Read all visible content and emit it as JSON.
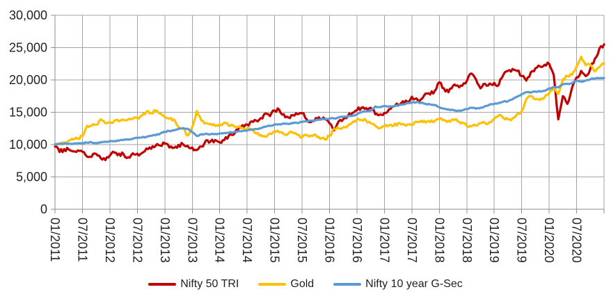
{
  "chart_data": {
    "type": "line",
    "title": "",
    "xlabel": "",
    "ylabel": "",
    "ylim": [
      0,
      30000
    ],
    "grid": true,
    "legend_position": "bottom",
    "grid_color": "#a3a3a3",
    "axis_color": "#8c8c8c",
    "text_color": "#1f1f1f",
    "y_tick_values": [
      0,
      5000,
      10000,
      15000,
      20000,
      25000,
      30000
    ],
    "y_tick_labels": [
      "0",
      "5,000",
      "10,000",
      "15,000",
      "20,000",
      "25,000",
      "30,000"
    ],
    "x_tick_labels": [
      "01/2011",
      "07/2011",
      "01/2012",
      "07/2012",
      "01/2013",
      "07/2013",
      "01/2014",
      "07/2014",
      "01/2015",
      "07/2015",
      "01/2016",
      "07/2016",
      "01/2017",
      "07/2017",
      "01/2018",
      "07/2018",
      "01/2019",
      "07/2019",
      "01/2020",
      "07/2020"
    ],
    "x_start": "01/2011",
    "x_end": "01/2021",
    "x_interval": "monthly",
    "series": [
      {
        "name": "Nifty 50 TRI",
        "color": "#C00000",
        "values": [
          9700,
          8850,
          9300,
          9250,
          8950,
          9100,
          8900,
          8150,
          8100,
          8550,
          7900,
          7600,
          8300,
          8750,
          8600,
          8500,
          8050,
          8650,
          8600,
          8700,
          9400,
          9350,
          9800,
          9850,
          10150,
          9550,
          9500,
          9950,
          10050,
          9800,
          9550,
          9150,
          9700,
          10650,
          10500,
          10700,
          10350,
          10700,
          11400,
          11500,
          12300,
          13000,
          13100,
          13600,
          13700,
          14100,
          14800,
          14400,
          15250,
          15400,
          14700,
          14200,
          14550,
          14700,
          14850,
          13900,
          13500,
          14100,
          13900,
          13950,
          13300,
          12200,
          13600,
          13900,
          14400,
          14900,
          15300,
          15700,
          15650,
          15700,
          14700,
          14650,
          14900,
          15450,
          15900,
          16150,
          16700,
          16600,
          17400,
          17150,
          17000,
          17900,
          17750,
          18300,
          19650,
          18700,
          18100,
          19100,
          19150,
          19100,
          19800,
          21000,
          20100,
          18700,
          19400,
          19450,
          19550,
          19250,
          20800,
          21400,
          21700,
          21400,
          20600,
          19900,
          21200,
          21800,
          22100,
          22350,
          22500,
          20800,
          13900,
          17500,
          16300,
          18800,
          20400,
          21400,
          20600,
          21700,
          23300,
          24900,
          25500
        ]
      },
      {
        "name": "Gold",
        "color": "#FFC000",
        "values": [
          10000,
          10200,
          10300,
          10600,
          10800,
          10900,
          11300,
          12900,
          12900,
          13100,
          13900,
          13300,
          13450,
          13700,
          13600,
          13800,
          13900,
          14000,
          14100,
          14500,
          15100,
          14900,
          15250,
          14800,
          14300,
          14000,
          13900,
          12700,
          12500,
          11400,
          12700,
          15200,
          13700,
          13300,
          13200,
          12900,
          13100,
          13400,
          12900,
          12900,
          12700,
          12600,
          12500,
          12400,
          11700,
          11500,
          11200,
          11700,
          12100,
          11900,
          11600,
          11700,
          11800,
          11500,
          11100,
          11500,
          11400,
          11500,
          10900,
          10800,
          11300,
          12400,
          12500,
          12700,
          12900,
          13400,
          13900,
          13800,
          13700,
          13300,
          12900,
          12550,
          12800,
          13000,
          12900,
          13300,
          13200,
          13100,
          13000,
          13500,
          13700,
          13400,
          13500,
          13600,
          13950,
          13800,
          13700,
          13900,
          13600,
          13400,
          12900,
          12800,
          12950,
          13300,
          13350,
          13500,
          14000,
          14550,
          14100,
          13900,
          14050,
          14700,
          15200,
          17000,
          17500,
          17000,
          16900,
          17300,
          17900,
          18600,
          17800,
          20100,
          20600,
          20800,
          22100,
          23600,
          22300,
          22400,
          21300,
          22000,
          22500
        ]
      },
      {
        "name": "Nifty 10 year G-Sec",
        "color": "#5B9BD5",
        "values": [
          10050,
          10100,
          10150,
          10150,
          10100,
          10200,
          10250,
          10300,
          10350,
          10250,
          10300,
          10450,
          10500,
          10550,
          10600,
          10700,
          10800,
          10900,
          11050,
          11100,
          11200,
          11350,
          11450,
          11700,
          12000,
          12100,
          12200,
          12450,
          12550,
          12450,
          11900,
          11350,
          11600,
          11700,
          11600,
          11650,
          11700,
          11750,
          11850,
          11900,
          12050,
          12100,
          12150,
          12300,
          12400,
          12550,
          12750,
          12900,
          13100,
          13150,
          13250,
          13200,
          13300,
          13350,
          13500,
          13600,
          13700,
          13800,
          13850,
          13900,
          14000,
          14050,
          14200,
          14300,
          14350,
          14450,
          14700,
          15000,
          15100,
          15250,
          15900,
          15800,
          15950,
          15900,
          15950,
          16000,
          16200,
          16450,
          16500,
          16550,
          16450,
          16300,
          16200,
          16100,
          15800,
          15550,
          15450,
          15350,
          15250,
          15300,
          15500,
          15700,
          15550,
          15700,
          15950,
          16200,
          16300,
          16450,
          16650,
          16700,
          17000,
          17400,
          17800,
          18100,
          18050,
          18200,
          18250,
          18300,
          18700,
          18900,
          18850,
          19300,
          19400,
          19500,
          19900,
          19750,
          19900,
          20100,
          20200,
          20250,
          20300
        ]
      }
    ]
  }
}
